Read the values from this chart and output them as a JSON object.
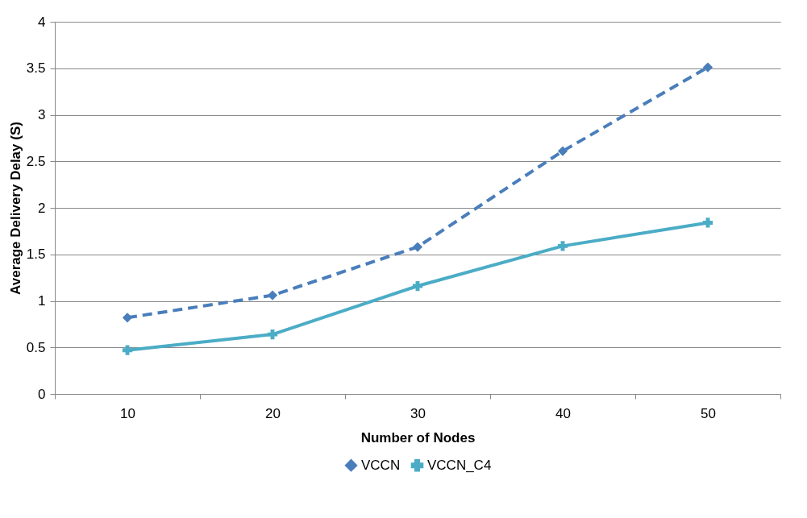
{
  "chart_data": {
    "type": "line",
    "xlabel": "Number of  Nodes",
    "ylabel": "Average  Delivery Delay (S)",
    "categories": [
      "10",
      "20",
      "30",
      "40",
      "50"
    ],
    "series": [
      {
        "name": "VCCN",
        "color": "#4a7ebb",
        "values": [
          0.82,
          1.06,
          1.58,
          2.61,
          3.51
        ],
        "marker": "diamond",
        "line_style": "dashed"
      },
      {
        "name": "VCCN_C4",
        "color": "#4bacc6",
        "values": [
          0.47,
          0.64,
          1.16,
          1.59,
          1.84
        ],
        "marker": "cross",
        "line_style": "solid"
      }
    ],
    "ylim": [
      0,
      4
    ],
    "yticks": [
      0,
      0.5,
      1,
      1.5,
      2,
      2.5,
      3,
      3.5,
      4
    ],
    "grid": "y",
    "legend": "bottom"
  }
}
